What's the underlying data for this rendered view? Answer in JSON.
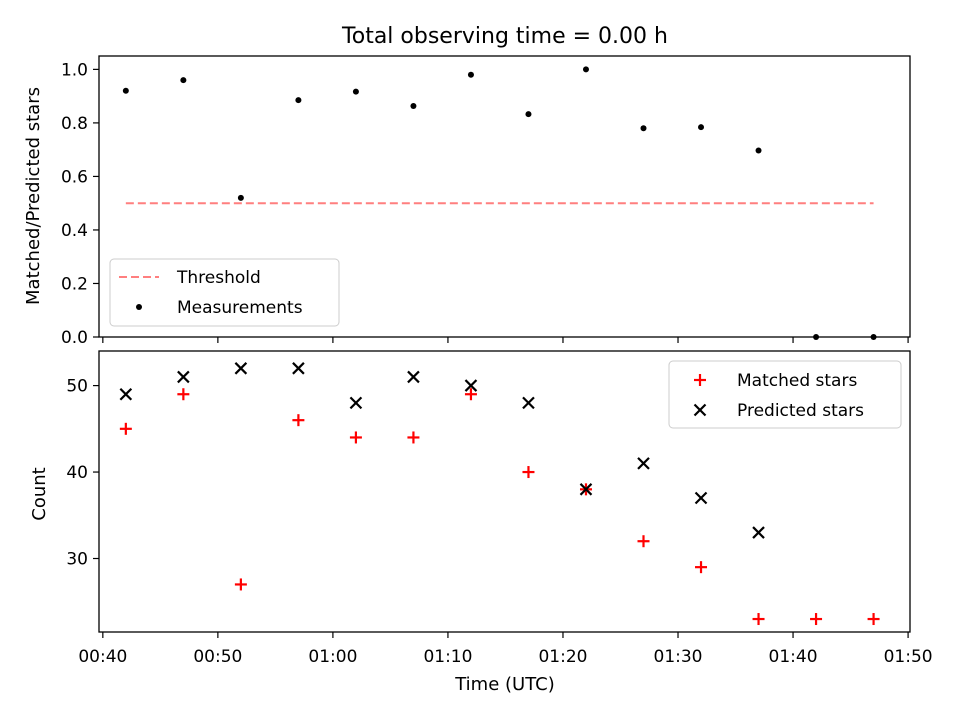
{
  "chart_data": [
    {
      "type": "scatter",
      "title": "Total observing time = 0.00 h",
      "xlabel": "",
      "ylabel": "Matched/Predicted stars",
      "ylim": [
        0,
        1.05
      ],
      "yticks": [
        "0.0",
        "0.2",
        "0.4",
        "0.6",
        "0.8",
        "1.0"
      ],
      "legend_position": "lower-left",
      "grid": false,
      "threshold": {
        "name": "Threshold",
        "value": 0.5,
        "x_start": "00:42",
        "x_end": "01:47",
        "color": "#ff7f7f"
      },
      "series": [
        {
          "name": "Measurements",
          "color": "#000000",
          "x": [
            "00:42",
            "00:47",
            "00:52",
            "00:57",
            "01:02",
            "01:07",
            "01:12",
            "01:17",
            "01:22",
            "01:27",
            "01:32",
            "01:37",
            "01:42",
            "01:47"
          ],
          "y": [
            0.92,
            0.96,
            0.52,
            0.885,
            0.917,
            0.863,
            0.98,
            0.833,
            1.0,
            0.78,
            0.784,
            0.697,
            0.0,
            0.0
          ]
        }
      ]
    },
    {
      "type": "scatter",
      "title": "",
      "xlabel": "Time (UTC)",
      "ylabel": "Count",
      "ylim": [
        21.5,
        54
      ],
      "yticks": [
        "30",
        "40",
        "50"
      ],
      "xlim": [
        "00:39:40",
        "01:50:10"
      ],
      "xticks": [
        "00:40",
        "00:50",
        "01:00",
        "01:10",
        "01:20",
        "01:30",
        "01:40",
        "01:50"
      ],
      "legend_position": "upper-right",
      "grid": false,
      "series": [
        {
          "name": "Matched stars",
          "marker": "plus",
          "color": "#ff0000",
          "x": [
            "00:42",
            "00:47",
            "00:52",
            "00:57",
            "01:02",
            "01:07",
            "01:12",
            "01:17",
            "01:22",
            "01:27",
            "01:32",
            "01:37",
            "01:42",
            "01:47"
          ],
          "y": [
            45,
            49,
            27,
            46,
            44,
            44,
            49,
            40,
            38,
            32,
            29,
            23,
            23,
            23
          ]
        },
        {
          "name": "Predicted stars",
          "marker": "x",
          "color": "#000000",
          "x": [
            "00:42",
            "00:47",
            "00:52",
            "00:57",
            "01:02",
            "01:07",
            "01:12",
            "01:17",
            "01:22",
            "01:27",
            "01:32",
            "01:37"
          ],
          "y": [
            49,
            51,
            52,
            52,
            48,
            51,
            50,
            48,
            38,
            41,
            37,
            33
          ]
        }
      ]
    }
  ]
}
